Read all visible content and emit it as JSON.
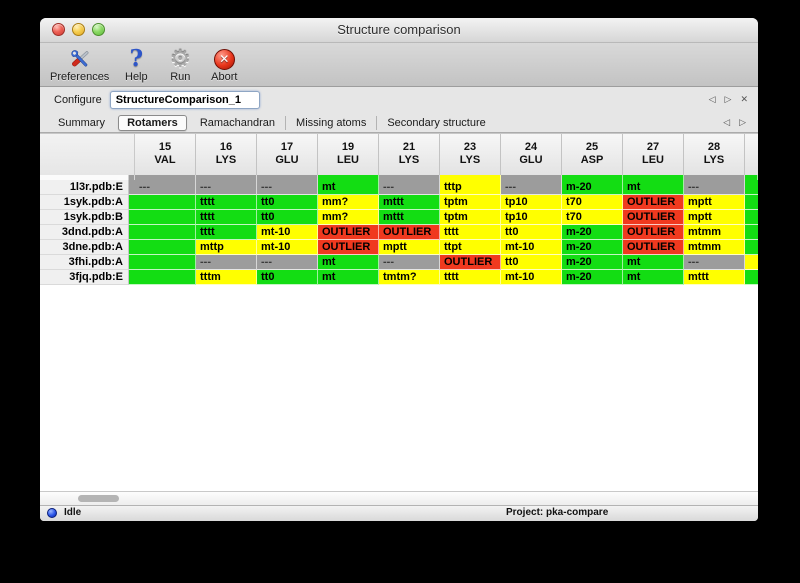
{
  "window": {
    "title": "Structure comparison"
  },
  "toolbar": {
    "buttons": [
      {
        "label": "Preferences",
        "icon": "tools-icon"
      },
      {
        "label": "Help",
        "icon": "question-icon"
      },
      {
        "label": "Run",
        "icon": "gear-icon"
      },
      {
        "label": "Abort",
        "icon": "abort-icon"
      }
    ]
  },
  "configure": {
    "label": "Configure",
    "value": "StructureComparison_1",
    "nav_icons": {
      "back": "◁",
      "forward": "▷",
      "close": "✕"
    }
  },
  "tabs": {
    "items": [
      "Summary",
      "Rotamers",
      "Ramachandran",
      "Missing atoms",
      "Secondary structure"
    ],
    "selected": "Rotamers",
    "nav_icons": {
      "back": "◁",
      "forward": "▷"
    }
  },
  "table": {
    "columns": [
      {
        "num": "15",
        "res": "VAL"
      },
      {
        "num": "16",
        "res": "LYS"
      },
      {
        "num": "17",
        "res": "GLU"
      },
      {
        "num": "19",
        "res": "LEU"
      },
      {
        "num": "21",
        "res": "LYS"
      },
      {
        "num": "23",
        "res": "LYS"
      },
      {
        "num": "24",
        "res": "GLU"
      },
      {
        "num": "25",
        "res": "ASP"
      },
      {
        "num": "27",
        "res": "LEU"
      },
      {
        "num": "28",
        "res": "LYS"
      }
    ],
    "strip": {
      "clip": "gray",
      "cells": [
        "gray",
        "gray",
        "gray",
        "green",
        "gray",
        "yellow",
        "gray",
        "green",
        "green",
        "gray"
      ],
      "partial": "green"
    },
    "rows": [
      {
        "label": "1l3r.pdb:E",
        "clip": "gray",
        "cells": [
          [
            "---",
            "gray"
          ],
          [
            "---",
            "gray"
          ],
          [
            "---",
            "gray"
          ],
          [
            "mt",
            "green"
          ],
          [
            "---",
            "gray"
          ],
          [
            "tttp",
            "yellow"
          ],
          [
            "---",
            "gray"
          ],
          [
            "m-20",
            "green"
          ],
          [
            "mt",
            "green"
          ],
          [
            "---",
            "gray"
          ]
        ],
        "partial": "green"
      },
      {
        "label": "1syk.pdb:A",
        "clip": "green",
        "cells": [
          [
            "",
            "green"
          ],
          [
            "tttt",
            "green"
          ],
          [
            "tt0",
            "green"
          ],
          [
            "mm?",
            "yellow"
          ],
          [
            "mttt",
            "green"
          ],
          [
            "tptm",
            "yellow"
          ],
          [
            "tp10",
            "yellow"
          ],
          [
            "t70",
            "yellow"
          ],
          [
            "OUTLIER",
            "red"
          ],
          [
            "mptt",
            "yellow"
          ]
        ],
        "partial": "green"
      },
      {
        "label": "1syk.pdb:B",
        "clip": "green",
        "cells": [
          [
            "",
            "green"
          ],
          [
            "tttt",
            "green"
          ],
          [
            "tt0",
            "green"
          ],
          [
            "mm?",
            "yellow"
          ],
          [
            "mttt",
            "green"
          ],
          [
            "tptm",
            "yellow"
          ],
          [
            "tp10",
            "yellow"
          ],
          [
            "t70",
            "yellow"
          ],
          [
            "OUTLIER",
            "red"
          ],
          [
            "mptt",
            "yellow"
          ]
        ],
        "partial": "green"
      },
      {
        "label": "3dnd.pdb:A",
        "clip": "green",
        "cells": [
          [
            "",
            "green"
          ],
          [
            "tttt",
            "green"
          ],
          [
            "mt-10",
            "yellow"
          ],
          [
            "OUTLIER",
            "red"
          ],
          [
            "OUTLIER",
            "red"
          ],
          [
            "tttt",
            "yellow"
          ],
          [
            "tt0",
            "yellow"
          ],
          [
            "m-20",
            "green"
          ],
          [
            "OUTLIER",
            "red"
          ],
          [
            "mtmm",
            "yellow"
          ]
        ],
        "partial": "green"
      },
      {
        "label": "3dne.pdb:A",
        "clip": "green",
        "cells": [
          [
            "",
            "green"
          ],
          [
            "mttp",
            "yellow"
          ],
          [
            "mt-10",
            "yellow"
          ],
          [
            "OUTLIER",
            "red"
          ],
          [
            "mptt",
            "yellow"
          ],
          [
            "ttpt",
            "yellow"
          ],
          [
            "mt-10",
            "yellow"
          ],
          [
            "m-20",
            "green"
          ],
          [
            "OUTLIER",
            "red"
          ],
          [
            "mtmm",
            "yellow"
          ]
        ],
        "partial": "green"
      },
      {
        "label": "3fhi.pdb:A",
        "clip": "green",
        "cells": [
          [
            "",
            "green"
          ],
          [
            "---",
            "gray"
          ],
          [
            "---",
            "gray"
          ],
          [
            "mt",
            "green"
          ],
          [
            "---",
            "gray"
          ],
          [
            "OUTLIER",
            "red"
          ],
          [
            "tt0",
            "yellow"
          ],
          [
            "m-20",
            "green"
          ],
          [
            "mt",
            "green"
          ],
          [
            "---",
            "gray"
          ]
        ],
        "partial": "yellow"
      },
      {
        "label": "3fjq.pdb:E",
        "clip": "green",
        "cells": [
          [
            "",
            "green"
          ],
          [
            "tttm",
            "yellow"
          ],
          [
            "tt0",
            "green"
          ],
          [
            "mt",
            "green"
          ],
          [
            "tmtm?",
            "yellow"
          ],
          [
            "tttt",
            "yellow"
          ],
          [
            "mt-10",
            "yellow"
          ],
          [
            "m-20",
            "green"
          ],
          [
            "mt",
            "green"
          ],
          [
            "mttt",
            "yellow"
          ]
        ],
        "partial": "green"
      }
    ]
  },
  "statusbar": {
    "state": "Idle",
    "project": "Project: pka-compare"
  },
  "colors": {
    "green": "#13dd13",
    "yellow": "#ffff00",
    "red": "#f0391f",
    "gray": "#9c9c9c"
  }
}
